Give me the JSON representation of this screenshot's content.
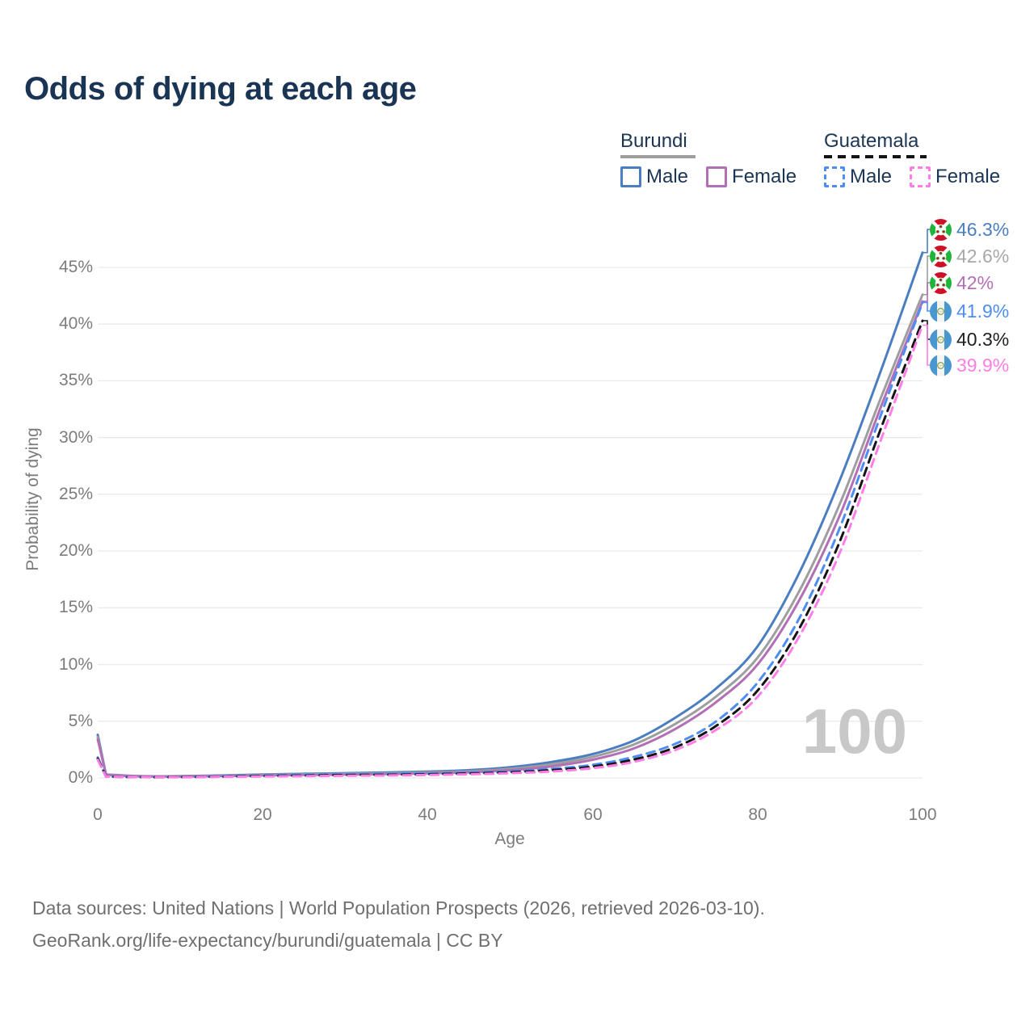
{
  "title": "Odds of dying at each age",
  "legend": {
    "groups": [
      {
        "country": "Burundi",
        "line_style": "solid",
        "underline_color": "#9e9e9e",
        "items": [
          {
            "label": "Male",
            "color": "#4a7ec1",
            "dashed": false
          },
          {
            "label": "Female",
            "color": "#b26fb6",
            "dashed": false
          }
        ]
      },
      {
        "country": "Guatemala",
        "line_style": "dashed",
        "underline_color": "#141414",
        "items": [
          {
            "label": "Male",
            "color": "#4e8df2",
            "dashed": true
          },
          {
            "label": "Female",
            "color": "#ff7ee6",
            "dashed": true
          }
        ]
      }
    ]
  },
  "chart_data": {
    "type": "line",
    "title": "Odds of dying at each age",
    "xlabel": "Age",
    "ylabel": "Probability of dying",
    "xlim": [
      0,
      100
    ],
    "ylim_percent": [
      0,
      48
    ],
    "xticks": [
      0,
      20,
      40,
      60,
      80,
      100
    ],
    "yticks_percent": [
      0,
      5,
      10,
      15,
      20,
      25,
      30,
      35,
      40,
      45
    ],
    "grid": "horizontal",
    "x_sample_ages": [
      0,
      1,
      5,
      10,
      15,
      20,
      25,
      30,
      35,
      40,
      45,
      50,
      55,
      60,
      65,
      70,
      75,
      80,
      85,
      90,
      95,
      100
    ],
    "series": [
      {
        "name": "Burundi Male",
        "country": "Burundi",
        "flag": "burundi",
        "color": "#4a7ec1",
        "dashed": false,
        "values_percent": [
          3.8,
          0.3,
          0.16,
          0.16,
          0.22,
          0.3,
          0.36,
          0.42,
          0.48,
          0.56,
          0.68,
          0.95,
          1.4,
          2.1,
          3.3,
          5.3,
          7.9,
          11.6,
          18.0,
          26.3,
          36.0,
          46.3
        ],
        "end_label": "46.3%",
        "end_label_color": "#4a7ec1"
      },
      {
        "name": "Burundi",
        "country": "Burundi",
        "flag": "burundi",
        "color": "#9e9e9e",
        "dashed": false,
        "values_percent": [
          3.6,
          0.28,
          0.15,
          0.14,
          0.19,
          0.26,
          0.31,
          0.36,
          0.41,
          0.48,
          0.58,
          0.8,
          1.2,
          1.85,
          2.95,
          4.75,
          7.2,
          10.6,
          16.4,
          24.2,
          33.6,
          42.6
        ],
        "end_label": "42.6%",
        "end_label_color": "#a8a8a8"
      },
      {
        "name": "Burundi Female",
        "country": "Burundi",
        "flag": "burundi",
        "color": "#b26fb6",
        "dashed": false,
        "values_percent": [
          3.4,
          0.26,
          0.14,
          0.13,
          0.17,
          0.22,
          0.26,
          0.3,
          0.35,
          0.41,
          0.5,
          0.68,
          1.02,
          1.6,
          2.6,
          4.3,
          6.7,
          10.0,
          15.6,
          23.2,
          32.8,
          42.0
        ],
        "end_label": "42%",
        "end_label_color": "#b26fb6"
      },
      {
        "name": "Guatemala Male",
        "country": "Guatemala",
        "flag": "guatemala",
        "color": "#4e8df2",
        "dashed": true,
        "values_percent": [
          1.8,
          0.13,
          0.08,
          0.08,
          0.14,
          0.22,
          0.28,
          0.32,
          0.35,
          0.39,
          0.46,
          0.58,
          0.8,
          1.15,
          1.85,
          3.0,
          5.0,
          8.4,
          14.0,
          22.1,
          32.1,
          41.9
        ],
        "end_label": "41.9%",
        "end_label_color": "#4e8df2"
      },
      {
        "name": "Guatemala",
        "country": "Guatemala",
        "flag": "guatemala",
        "color": "#141414",
        "dashed": true,
        "values_percent": [
          1.7,
          0.12,
          0.07,
          0.07,
          0.11,
          0.17,
          0.21,
          0.25,
          0.28,
          0.32,
          0.39,
          0.5,
          0.68,
          1.0,
          1.62,
          2.7,
          4.6,
          7.7,
          13.1,
          20.9,
          30.9,
          40.3
        ],
        "end_label": "40.3%",
        "end_label_color": "#1f1f1f"
      },
      {
        "name": "Guatemala Female",
        "country": "Guatemala",
        "flag": "guatemala",
        "color": "#ff7ee6",
        "dashed": true,
        "values_percent": [
          1.6,
          0.11,
          0.07,
          0.06,
          0.09,
          0.13,
          0.16,
          0.19,
          0.22,
          0.26,
          0.32,
          0.42,
          0.57,
          0.86,
          1.42,
          2.45,
          4.25,
          7.15,
          12.4,
          19.9,
          29.9,
          39.9
        ],
        "end_label": "39.9%",
        "end_label_color": "#ff7ee6"
      }
    ],
    "legend_position": "top-right"
  },
  "watermark": "100",
  "footer": {
    "line1": "Data sources: United Nations | World Population Prospects (2026, retrieved 2026-03-10).",
    "line2": "GeoRank.org/life-expectancy/burundi/guatemala | CC BY"
  }
}
